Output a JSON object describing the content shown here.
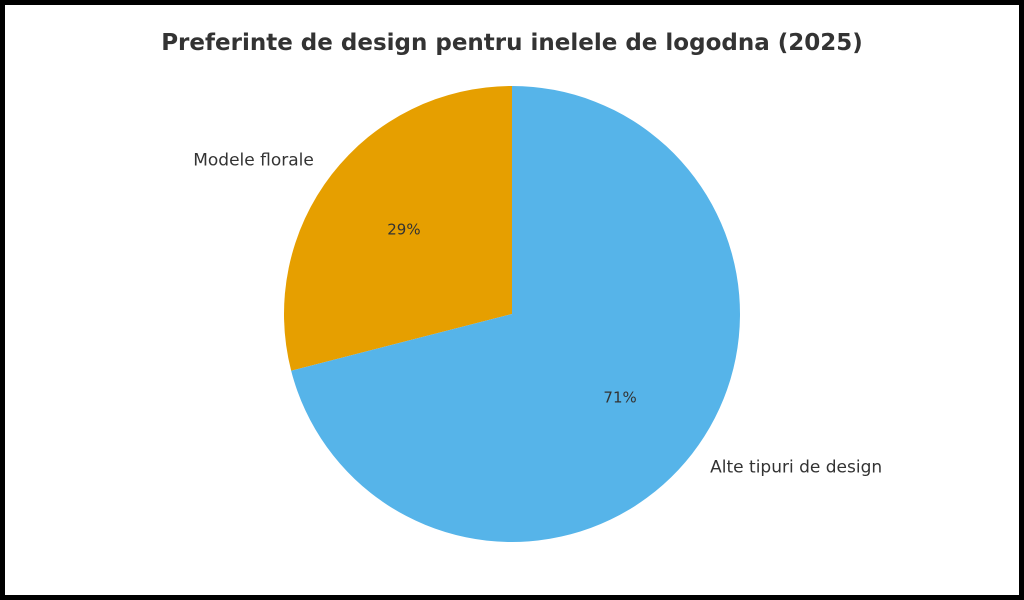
{
  "chart_data": {
    "type": "pie",
    "title": "Preferinte de design pentru inelele de logodna (2025)",
    "categories": [
      "Modele florale",
      "Alte tipuri de design"
    ],
    "values": [
      29,
      71
    ],
    "value_labels": [
      "29%",
      "71%"
    ],
    "colors": [
      "#E69F00",
      "#56B4E9"
    ],
    "start_angle_deg": 90,
    "direction": "counterclockwise",
    "legend": "none"
  }
}
